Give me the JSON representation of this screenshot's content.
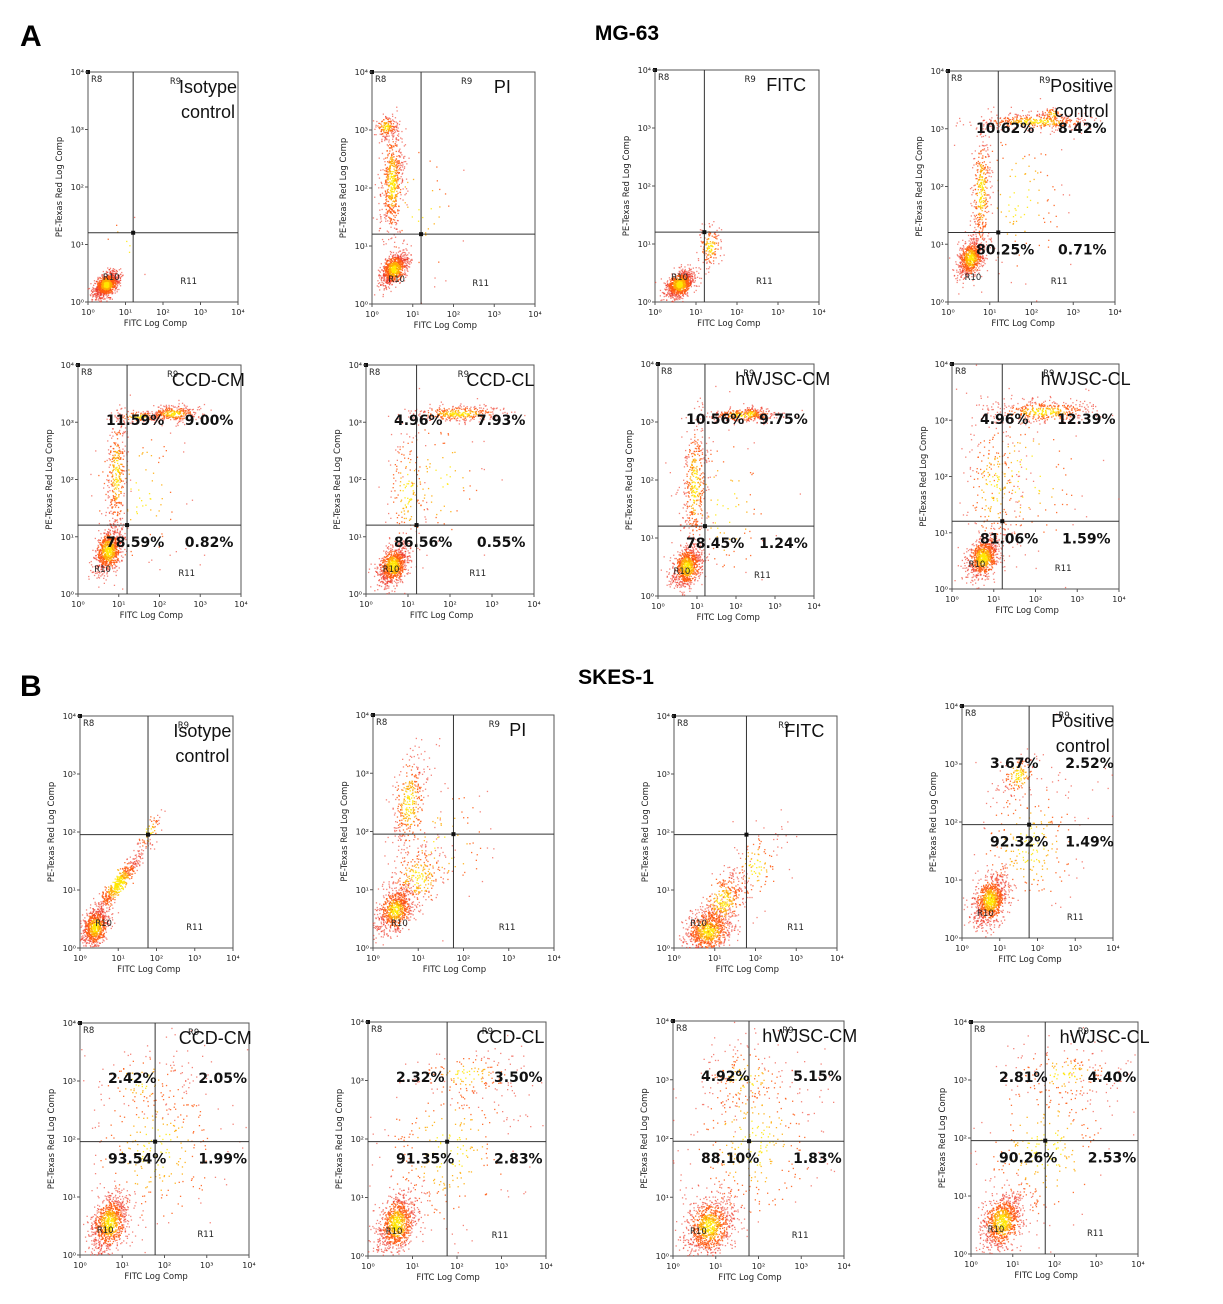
{
  "figure": {
    "panel_a_letter": "A",
    "panel_b_letter": "B",
    "panel_a_title": "MG-63",
    "panel_b_title": "SKES-1"
  },
  "colors": {
    "dot_light": "#ee3322",
    "dot_mid": "#ff5a10",
    "dot_core": "#ffaa00",
    "dot_hot": "#ffe600"
  },
  "chart_data": [
    {
      "type": "scatter",
      "panel": "A",
      "title_lines": [
        "Isotype",
        "control"
      ],
      "xlabel": "FITC Log Comp",
      "ylabel": "PE-Texas Red Log Comp",
      "x_ticks": [
        "10⁰",
        "10¹",
        "10²",
        "10³",
        "10⁴"
      ],
      "y_ticks": [
        "10⁰",
        "10¹",
        "10²",
        "10³",
        "10⁴"
      ],
      "xlim": [
        1,
        10000
      ],
      "ylim": [
        1,
        10000
      ],
      "x_scale": "log",
      "y_scale": "log",
      "gate": [
        16,
        16
      ],
      "regions": [
        "R8",
        "R9",
        "R10",
        "R11"
      ],
      "percentages": {
        "UL": "",
        "UR": "",
        "LL": "",
        "LR": ""
      },
      "clusters": [
        [
          0.5,
          0.3,
          0.17,
          0.11,
          1000,
          0.5
        ],
        [
          1.0,
          1.0,
          0.35,
          0.35,
          10,
          0
        ]
      ]
    },
    {
      "type": "scatter",
      "panel": "A",
      "title_lines": [
        "PI"
      ],
      "xlabel": "FITC Log Comp",
      "ylabel": "PE-Texas Red Log Comp",
      "x_ticks": [
        "10⁰",
        "10¹",
        "10²",
        "10³",
        "10⁴"
      ],
      "y_ticks": [
        "10⁰",
        "10¹",
        "10²",
        "10³",
        "10⁴"
      ],
      "xlim": [
        1,
        10000
      ],
      "ylim": [
        1,
        10000
      ],
      "x_scale": "log",
      "y_scale": "log",
      "gate": [
        16,
        16
      ],
      "regions": [
        "R8",
        "R9",
        "R10",
        "R11"
      ],
      "percentages": {
        "UL": "",
        "UR": "",
        "LL": "",
        "LR": ""
      },
      "clusters": [
        [
          0.55,
          0.6,
          0.17,
          0.14,
          800,
          0.5
        ],
        [
          0.5,
          2.1,
          0.14,
          0.5,
          600,
          0.3
        ],
        [
          0.35,
          3.05,
          0.14,
          0.1,
          150,
          0
        ],
        [
          1.2,
          1.6,
          0.6,
          0.7,
          40,
          0
        ]
      ]
    },
    {
      "type": "scatter",
      "panel": "A",
      "title_lines": [
        "FITC"
      ],
      "xlabel": "FITC Log Comp",
      "ylabel": "PE-Texas Red Log Comp",
      "x_ticks": [
        "10⁰",
        "10¹",
        "10²",
        "10³",
        "10⁴"
      ],
      "y_ticks": [
        "10⁰",
        "10¹",
        "10²",
        "10³",
        "10⁴"
      ],
      "xlim": [
        1,
        10000
      ],
      "ylim": [
        1,
        10000
      ],
      "x_scale": "log",
      "y_scale": "log",
      "gate": [
        16,
        16
      ],
      "regions": [
        "R8",
        "R9",
        "R10",
        "R11"
      ],
      "percentages": {
        "UL": "",
        "UR": "",
        "LL": "",
        "LR": ""
      },
      "clusters": [
        [
          0.6,
          0.3,
          0.18,
          0.12,
          900,
          0.4
        ],
        [
          1.35,
          0.95,
          0.15,
          0.18,
          150,
          0
        ]
      ]
    },
    {
      "type": "scatter",
      "panel": "A",
      "title_lines": [
        "Positive",
        "control"
      ],
      "xlabel": "FITC Log Comp",
      "ylabel": "PE-Texas Red Log Comp",
      "x_ticks": [
        "10⁰",
        "10¹",
        "10²",
        "10³",
        "10⁴"
      ],
      "y_ticks": [
        "10⁰",
        "10¹",
        "10²",
        "10³",
        "10⁴"
      ],
      "xlim": [
        1,
        10000
      ],
      "ylim": [
        1,
        10000
      ],
      "x_scale": "log",
      "y_scale": "log",
      "gate": [
        16,
        16
      ],
      "regions": [
        "R8",
        "R9",
        "R10",
        "R11"
      ],
      "percentages": {
        "UL": "10.62%",
        "UR": "8.42%",
        "LL": "80.25%",
        "LR": "0.71%"
      },
      "clusters": [
        [
          0.55,
          0.75,
          0.16,
          0.17,
          700,
          0.4
        ],
        [
          0.8,
          1.9,
          0.12,
          0.55,
          350,
          0.2
        ],
        [
          2.1,
          3.12,
          0.7,
          0.07,
          400,
          0
        ],
        [
          2.5,
          3.25,
          0.15,
          0.06,
          60,
          0
        ],
        [
          1.7,
          1.8,
          0.7,
          0.8,
          120,
          0
        ]
      ]
    },
    {
      "type": "scatter",
      "panel": "A",
      "title_lines": [
        "CCD-CM"
      ],
      "xlabel": "FITC Log Comp",
      "ylabel": "PE-Texas Red Log Comp",
      "x_ticks": [
        "10⁰",
        "10¹",
        "10²",
        "10³",
        "10⁴"
      ],
      "y_ticks": [
        "10⁰",
        "10¹",
        "10²",
        "10³",
        "10⁴"
      ],
      "xlim": [
        1,
        10000
      ],
      "ylim": [
        1,
        10000
      ],
      "x_scale": "log",
      "y_scale": "log",
      "gate": [
        16,
        16
      ],
      "regions": [
        "R8",
        "R9",
        "R10",
        "R11"
      ],
      "percentages": {
        "UL": "11.59%",
        "UR": "9.00%",
        "LL": "78.59%",
        "LR": "0.82%"
      },
      "clusters": [
        [
          0.75,
          0.75,
          0.18,
          0.2,
          800,
          0.4
        ],
        [
          0.95,
          2.1,
          0.12,
          0.55,
          350,
          0.2
        ],
        [
          2.35,
          3.15,
          0.3,
          0.07,
          300,
          0.2
        ],
        [
          1.5,
          3.1,
          0.3,
          0.05,
          120,
          0
        ],
        [
          1.5,
          1.8,
          0.7,
          0.8,
          100,
          0
        ]
      ]
    },
    {
      "type": "scatter",
      "panel": "A",
      "title_lines": [
        "CCD-CL"
      ],
      "xlabel": "FITC Log Comp",
      "ylabel": "PE-Texas Red Log Comp",
      "x_ticks": [
        "10⁰",
        "10¹",
        "10²",
        "10³",
        "10⁴"
      ],
      "y_ticks": [
        "10⁰",
        "10¹",
        "10²",
        "10³",
        "10⁴"
      ],
      "xlim": [
        1,
        10000
      ],
      "ylim": [
        1,
        10000
      ],
      "x_scale": "log",
      "y_scale": "log",
      "gate": [
        16,
        16
      ],
      "regions": [
        "R8",
        "R9",
        "R10",
        "R11"
      ],
      "percentages": {
        "UL": "4.96%",
        "UR": "7.93%",
        "LL": "86.56%",
        "LR": "0.55%"
      },
      "clusters": [
        [
          0.65,
          0.5,
          0.18,
          0.17,
          900,
          0.4
        ],
        [
          1.0,
          1.8,
          0.25,
          0.6,
          150,
          0
        ],
        [
          2.2,
          3.15,
          0.55,
          0.07,
          350,
          0.1
        ],
        [
          1.8,
          2.0,
          0.6,
          0.7,
          80,
          0
        ]
      ]
    },
    {
      "type": "scatter",
      "panel": "A",
      "title_lines": [
        "hWJSC-CM"
      ],
      "xlabel": "FITC Log Comp",
      "ylabel": "PE-Texas Red Log Comp",
      "x_ticks": [
        "10⁰",
        "10¹",
        "10²",
        "10³",
        "10⁴"
      ],
      "y_ticks": [
        "10⁰",
        "10¹",
        "10²",
        "10³",
        "10⁴"
      ],
      "xlim": [
        1,
        10000
      ],
      "ylim": [
        1,
        10000
      ],
      "x_scale": "log",
      "y_scale": "log",
      "gate": [
        16,
        16
      ],
      "regions": [
        "R8",
        "R9",
        "R10",
        "R11"
      ],
      "percentages": {
        "UL": "10.56%",
        "UR": "9.75%",
        "LL": "78.45%",
        "LR": "1.24%"
      },
      "clusters": [
        [
          0.75,
          0.5,
          0.2,
          0.18,
          800,
          0.4
        ],
        [
          0.95,
          1.9,
          0.15,
          0.6,
          400,
          0.2
        ],
        [
          2.2,
          3.12,
          0.45,
          0.06,
          300,
          0.1
        ],
        [
          2.4,
          3.15,
          0.12,
          0.05,
          80,
          0
        ],
        [
          1.7,
          1.5,
          0.7,
          0.8,
          100,
          0
        ]
      ]
    },
    {
      "type": "scatter",
      "panel": "A",
      "title_lines": [
        "hWJSC-CL"
      ],
      "xlabel": "FITC Log Comp",
      "ylabel": "PE-Texas Red Log Comp",
      "x_ticks": [
        "10⁰",
        "10¹",
        "10²",
        "10³",
        "10⁴"
      ],
      "y_ticks": [
        "10⁰",
        "10¹",
        "10²",
        "10³",
        "10⁴"
      ],
      "xlim": [
        1,
        10000
      ],
      "ylim": [
        1,
        10000
      ],
      "x_scale": "log",
      "y_scale": "log",
      "gate": [
        16,
        16
      ],
      "regions": [
        "R8",
        "R9",
        "R10",
        "R11"
      ],
      "percentages": {
        "UL": "4.96%",
        "UR": "12.39%",
        "LL": "81.06%",
        "LR": "1.59%"
      },
      "clusters": [
        [
          0.75,
          0.55,
          0.2,
          0.18,
          800,
          0.4
        ],
        [
          1.0,
          1.8,
          0.35,
          0.7,
          250,
          0
        ],
        [
          2.2,
          3.15,
          0.6,
          0.1,
          400,
          0.1
        ],
        [
          1.8,
          2.0,
          0.8,
          0.8,
          120,
          0
        ]
      ]
    },
    {
      "type": "scatter",
      "panel": "B",
      "title_lines": [
        "Isotype",
        "control"
      ],
      "xlabel": "FITC Log Comp",
      "ylabel": "PE-Texas Red Log Comp",
      "x_ticks": [
        "10⁰",
        "10¹",
        "10²",
        "10³",
        "10⁴"
      ],
      "y_ticks": [
        "10⁰",
        "10¹",
        "10²",
        "10³",
        "10⁴"
      ],
      "xlim": [
        1,
        10000
      ],
      "ylim": [
        1,
        10000
      ],
      "x_scale": "log",
      "y_scale": "log",
      "gate": [
        60,
        90
      ],
      "regions": [
        "R8",
        "R9",
        "R10",
        "R11"
      ],
      "percentages": {
        "UL": "",
        "UR": "",
        "LL": "",
        "LR": ""
      },
      "clusters": [
        [
          0.4,
          0.35,
          0.18,
          0.17,
          700,
          0.4
        ],
        [
          1.0,
          1.1,
          0.35,
          0.3,
          500,
          0.95
        ],
        [
          1.8,
          2.0,
          0.2,
          0.2,
          60,
          0.9
        ]
      ]
    },
    {
      "type": "scatter",
      "panel": "B",
      "title_lines": [
        "PI"
      ],
      "xlabel": "FITC Log Comp",
      "ylabel": "PE-Texas Red Log Comp",
      "x_ticks": [
        "10⁰",
        "10¹",
        "10²",
        "10³",
        "10⁴"
      ],
      "y_ticks": [
        "10⁰",
        "10¹",
        "10²",
        "10³",
        "10⁴"
      ],
      "xlim": [
        1,
        10000
      ],
      "ylim": [
        1,
        10000
      ],
      "x_scale": "log",
      "y_scale": "log",
      "gate": [
        60,
        90
      ],
      "regions": [
        "R8",
        "R9",
        "R10",
        "R11"
      ],
      "percentages": {
        "UL": "",
        "UR": "",
        "LL": "",
        "LR": ""
      },
      "clusters": [
        [
          0.5,
          0.65,
          0.2,
          0.2,
          700,
          0.4
        ],
        [
          1.0,
          1.2,
          0.35,
          0.3,
          300,
          0.5
        ],
        [
          0.8,
          2.5,
          0.2,
          0.45,
          350,
          0.4
        ],
        [
          1.6,
          1.8,
          0.6,
          0.6,
          80,
          0
        ]
      ]
    },
    {
      "type": "scatter",
      "panel": "B",
      "title_lines": [
        "FITC"
      ],
      "xlabel": "FITC Log Comp",
      "ylabel": "PE-Texas Red Log Comp",
      "x_ticks": [
        "10⁰",
        "10¹",
        "10²",
        "10³",
        "10⁴"
      ],
      "y_ticks": [
        "10⁰",
        "10¹",
        "10²",
        "10³",
        "10⁴"
      ],
      "xlim": [
        1,
        10000
      ],
      "ylim": [
        1,
        10000
      ],
      "x_scale": "log",
      "y_scale": "log",
      "gate": [
        60,
        90
      ],
      "regions": [
        "R8",
        "R9",
        "R10",
        "R11"
      ],
      "percentages": {
        "UL": "",
        "UR": "",
        "LL": "",
        "LR": ""
      },
      "clusters": [
        [
          0.85,
          0.3,
          0.3,
          0.2,
          800,
          0.3
        ],
        [
          1.2,
          0.8,
          0.3,
          0.3,
          350,
          0.7
        ],
        [
          2.0,
          1.4,
          0.35,
          0.35,
          120,
          0.3
        ]
      ]
    },
    {
      "type": "scatter",
      "panel": "B",
      "title_lines": [
        "Positive",
        "control"
      ],
      "xlabel": "FITC Log Comp",
      "ylabel": "PE-Texas Red Log Comp",
      "x_ticks": [
        "10⁰",
        "10¹",
        "10²",
        "10³",
        "10⁴"
      ],
      "y_ticks": [
        "10⁰",
        "10¹",
        "10²",
        "10³",
        "10⁴"
      ],
      "xlim": [
        1,
        10000
      ],
      "ylim": [
        1,
        10000
      ],
      "x_scale": "log",
      "y_scale": "log",
      "gate": [
        60,
        90
      ],
      "regions": [
        "R8",
        "R9",
        "R10",
        "R11"
      ],
      "percentages": {
        "UL": "3.67%",
        "UR": "2.52%",
        "LL": "92.32%",
        "LR": "1.49%"
      },
      "clusters": [
        [
          0.75,
          0.65,
          0.22,
          0.22,
          900,
          0.4
        ],
        [
          1.5,
          2.8,
          0.25,
          0.2,
          150,
          0.5
        ],
        [
          1.8,
          1.6,
          0.8,
          0.7,
          250,
          0.4
        ]
      ]
    },
    {
      "type": "scatter",
      "panel": "B",
      "title_lines": [
        "CCD-CM"
      ],
      "xlabel": "FITC Log Comp",
      "ylabel": "PE-Texas Red Log Comp",
      "x_ticks": [
        "10⁰",
        "10¹",
        "10²",
        "10³",
        "10⁴"
      ],
      "y_ticks": [
        "10⁰",
        "10¹",
        "10²",
        "10³",
        "10⁴"
      ],
      "xlim": [
        1,
        10000
      ],
      "ylim": [
        1,
        10000
      ],
      "x_scale": "log",
      "y_scale": "log",
      "gate": [
        60,
        90
      ],
      "regions": [
        "R8",
        "R9",
        "R10",
        "R11"
      ],
      "percentages": {
        "UL": "2.42%",
        "UR": "2.05%",
        "LL": "93.54%",
        "LR": "1.99%"
      },
      "clusters": [
        [
          0.7,
          0.55,
          0.22,
          0.25,
          900,
          0.4
        ],
        [
          1.8,
          1.8,
          0.9,
          0.8,
          300,
          0.3
        ],
        [
          1.5,
          3.0,
          0.6,
          0.3,
          100,
          0
        ]
      ]
    },
    {
      "type": "scatter",
      "panel": "B",
      "title_lines": [
        "CCD-CL"
      ],
      "xlabel": "FITC Log Comp",
      "ylabel": "PE-Texas Red Log Comp",
      "x_ticks": [
        "10⁰",
        "10¹",
        "10²",
        "10³",
        "10⁴"
      ],
      "y_ticks": [
        "10⁰",
        "10¹",
        "10²",
        "10³",
        "10⁴"
      ],
      "xlim": [
        1,
        10000
      ],
      "ylim": [
        1,
        10000
      ],
      "x_scale": "log",
      "y_scale": "log",
      "gate": [
        60,
        90
      ],
      "regions": [
        "R8",
        "R9",
        "R10",
        "R11"
      ],
      "percentages": {
        "UL": "2.32%",
        "UR": "3.50%",
        "LL": "91.35%",
        "LR": "2.83%"
      },
      "clusters": [
        [
          0.65,
          0.55,
          0.22,
          0.25,
          900,
          0.4
        ],
        [
          1.8,
          1.8,
          0.9,
          0.8,
          300,
          0.5
        ],
        [
          2.2,
          3.1,
          0.6,
          0.2,
          150,
          0
        ]
      ]
    },
    {
      "type": "scatter",
      "panel": "B",
      "title_lines": [
        "hWJSC-CM"
      ],
      "xlabel": "FITC Log Comp",
      "ylabel": "PE-Texas Red Log Comp",
      "x_ticks": [
        "10⁰",
        "10¹",
        "10²",
        "10³",
        "10⁴"
      ],
      "y_ticks": [
        "10⁰",
        "10¹",
        "10²",
        "10³",
        "10⁴"
      ],
      "xlim": [
        1,
        10000
      ],
      "ylim": [
        1,
        10000
      ],
      "x_scale": "log",
      "y_scale": "log",
      "gate": [
        60,
        90
      ],
      "regions": [
        "R8",
        "R9",
        "R10",
        "R11"
      ],
      "percentages": {
        "UL": "4.92%",
        "UR": "5.15%",
        "LL": "88.10%",
        "LR": "1.83%"
      },
      "clusters": [
        [
          0.85,
          0.5,
          0.28,
          0.25,
          900,
          0.3
        ],
        [
          1.9,
          1.9,
          0.9,
          0.8,
          350,
          0.3
        ],
        [
          1.7,
          3.0,
          0.5,
          0.3,
          150,
          0
        ]
      ]
    },
    {
      "type": "scatter",
      "panel": "B",
      "title_lines": [
        "hWJSC-CL"
      ],
      "xlabel": "FITC Log Comp",
      "ylabel": "PE-Texas Red Log Comp",
      "x_ticks": [
        "10⁰",
        "10¹",
        "10²",
        "10³",
        "10⁴"
      ],
      "y_ticks": [
        "10⁰",
        "10¹",
        "10²",
        "10³",
        "10⁴"
      ],
      "xlim": [
        1,
        10000
      ],
      "ylim": [
        1,
        10000
      ],
      "x_scale": "log",
      "y_scale": "log",
      "gate": [
        60,
        90
      ],
      "regions": [
        "R8",
        "R9",
        "R10",
        "R11"
      ],
      "percentages": {
        "UL": "2.81%",
        "UR": "4.40%",
        "LL": "90.26%",
        "LR": "2.53%"
      },
      "clusters": [
        [
          0.75,
          0.55,
          0.25,
          0.25,
          900,
          0.4
        ],
        [
          1.8,
          1.8,
          0.9,
          0.8,
          300,
          0.5
        ],
        [
          2.2,
          3.1,
          0.7,
          0.25,
          150,
          0
        ]
      ]
    }
  ]
}
